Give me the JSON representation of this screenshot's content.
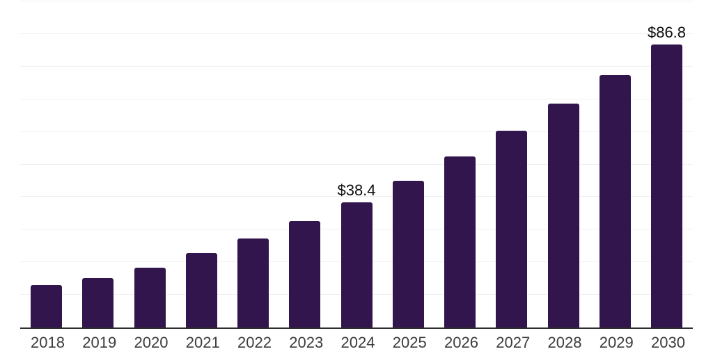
{
  "chart": {
    "colors": {
      "bar": "#33154d",
      "gridline": "#f0f0f0",
      "axis_line": "#2e2e2e",
      "value_label": "#0f0f0f",
      "tick_label": "#3c3c3c",
      "background": "#ffffff"
    }
  },
  "chart_data": {
    "type": "bar",
    "title": "",
    "xlabel": "",
    "ylabel": "",
    "categories": [
      "2018",
      "2019",
      "2020",
      "2021",
      "2022",
      "2023",
      "2024",
      "2025",
      "2026",
      "2027",
      "2028",
      "2029",
      "2030"
    ],
    "values": [
      13.0,
      15.1,
      18.4,
      22.9,
      27.4,
      32.6,
      38.4,
      45.0,
      52.5,
      60.4,
      68.6,
      77.5,
      86.8
    ],
    "labels": {
      "2024": "$38.4",
      "2030": "$86.8"
    },
    "ylim": [
      0,
      100
    ],
    "grid_step": 10,
    "grid": "horizontal",
    "legend": "none"
  }
}
